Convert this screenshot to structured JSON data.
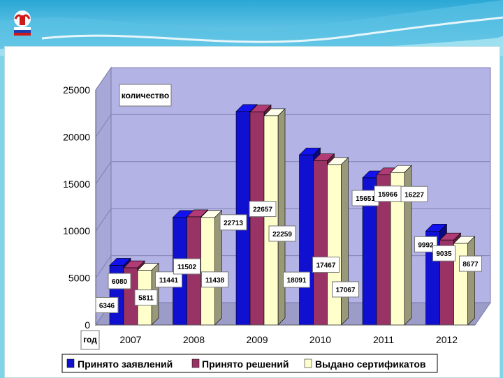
{
  "chart_data": {
    "type": "bar",
    "title": "",
    "unit_label": "количество",
    "xlabel": "год",
    "categories": [
      "2007",
      "2008",
      "2009",
      "2010",
      "2011",
      "2012"
    ],
    "series": [
      {
        "name": "Принято заявлений",
        "color": "#1010d0",
        "values": [
          6346,
          11441,
          22713,
          18091,
          15651,
          9992
        ]
      },
      {
        "name": "Принято решений",
        "color": "#993366",
        "values": [
          6080,
          11502,
          22657,
          17467,
          15966,
          9035
        ]
      },
      {
        "name": "Выдано сертификатов",
        "color": "#ffffcc",
        "values": [
          5811,
          11438,
          22259,
          17067,
          16227,
          8677
        ]
      }
    ],
    "ylim": [
      0,
      25000
    ],
    "yticks": [
      0,
      5000,
      10000,
      15000,
      20000,
      25000
    ],
    "grid": true,
    "legend": "bottom",
    "chart_style": "3d-column"
  },
  "colors": {
    "background": "#7fd4ea",
    "wall_back": "#b3b3e6",
    "wall_side": "#a8a8d8",
    "floor": "#9c9cc8"
  },
  "logo_icon": "pension-fund-logo"
}
